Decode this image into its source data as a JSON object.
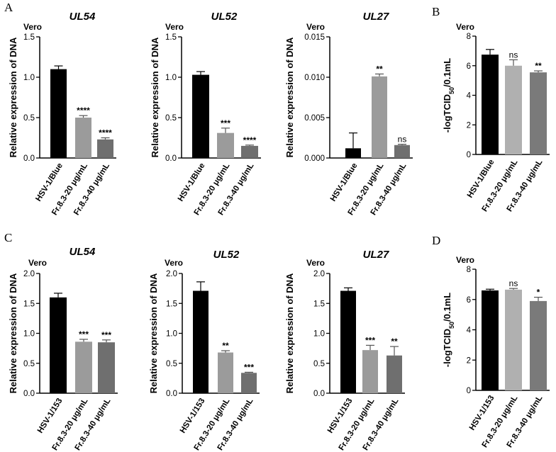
{
  "panel_letters": {
    "A": "A",
    "B": "B",
    "C": "C",
    "D": "D"
  },
  "chart_data": [
    {
      "id": "A-UL54",
      "panel": "A",
      "type": "bar",
      "title": "UL54",
      "cell_label": "Vero",
      "ylabel": "Relative expression of DNA",
      "xlabel": "",
      "categories": [
        "HSV-1/Blue",
        "Fr.8.3-20 μg/mL",
        "Fr.8.3-40 μg/mL"
      ],
      "values": [
        1.1,
        0.5,
        0.23
      ],
      "errors": [
        0.04,
        0.025,
        0.02
      ],
      "significance": [
        "",
        "****",
        "****"
      ],
      "ylim": [
        0,
        1.5
      ],
      "yticks": [
        0.0,
        0.5,
        1.0,
        1.5
      ],
      "tick_decimals": 1,
      "colors": [
        "#000000",
        "#9b9b9b",
        "#6f6f6f"
      ]
    },
    {
      "id": "A-UL52",
      "panel": "A",
      "type": "bar",
      "title": "UL52",
      "cell_label": "Vero",
      "ylabel": "Relative expression of DNA",
      "xlabel": "",
      "categories": [
        "HSV-1/Blue",
        "Fr.8.3-20 μg/mL",
        "Fr.8.3-40 μg/mL"
      ],
      "values": [
        1.03,
        0.31,
        0.15
      ],
      "errors": [
        0.04,
        0.06,
        0.01
      ],
      "significance": [
        "",
        "***",
        "****"
      ],
      "ylim": [
        0,
        1.5
      ],
      "yticks": [
        0.0,
        0.5,
        1.0,
        1.5
      ],
      "tick_decimals": 1,
      "colors": [
        "#000000",
        "#9b9b9b",
        "#6f6f6f"
      ]
    },
    {
      "id": "A-UL27",
      "panel": "A",
      "type": "bar",
      "title": "UL27",
      "cell_label": "Vero",
      "ylabel": "Relative expression of DNA",
      "xlabel": "",
      "categories": [
        "HSV-1/Blue",
        "Fr.8.3-20 μg/mL",
        "Fr.8.3-40 μg/mL"
      ],
      "values": [
        0.0012,
        0.0101,
        0.0016
      ],
      "errors": [
        0.0019,
        0.0003,
        0.0001
      ],
      "significance": [
        "",
        "**",
        "ns"
      ],
      "ylim": [
        0,
        0.015
      ],
      "yticks": [
        0.0,
        0.005,
        0.01,
        0.015
      ],
      "tick_decimals": 3,
      "colors": [
        "#000000",
        "#9b9b9b",
        "#6f6f6f"
      ]
    },
    {
      "id": "B",
      "panel": "B",
      "type": "bar",
      "title": "",
      "cell_label": "Vero",
      "ylabel": "-logTCID50/0.1mL",
      "ylabel_main": "-logTCID",
      "ylabel_sub": "50",
      "ylabel_tail": "/0.1mL",
      "xlabel": "",
      "categories": [
        "HSV-1/Blue",
        "Fr.8.3-20 μg/mL",
        "Fr.8.3-40 μg/mL"
      ],
      "values": [
        6.75,
        6.0,
        5.55
      ],
      "errors": [
        0.35,
        0.4,
        0.1
      ],
      "significance": [
        "",
        "ns",
        "**"
      ],
      "ylim": [
        0,
        8
      ],
      "yticks": [
        0,
        2,
        4,
        6,
        8
      ],
      "tick_decimals": 0,
      "colors": [
        "#000000",
        "#b0b0b0",
        "#7a7a7a"
      ]
    },
    {
      "id": "C-UL54",
      "panel": "C",
      "type": "bar",
      "title": "UL54",
      "cell_label": "Vero",
      "ylabel": "Relative expression of DNA",
      "xlabel": "",
      "categories": [
        "HSV-1/153",
        "Fr.8.3-20 μg/mL",
        "Fr.8.3-40 μg/mL"
      ],
      "values": [
        1.6,
        0.86,
        0.85
      ],
      "errors": [
        0.07,
        0.04,
        0.04
      ],
      "significance": [
        "",
        "***",
        "***"
      ],
      "ylim": [
        0,
        2.0
      ],
      "yticks": [
        0.0,
        0.5,
        1.0,
        1.5,
        2.0
      ],
      "tick_decimals": 1,
      "colors": [
        "#000000",
        "#9b9b9b",
        "#6f6f6f"
      ]
    },
    {
      "id": "C-UL52",
      "panel": "C",
      "type": "bar",
      "title": "UL52",
      "cell_label": "Vero",
      "ylabel": "Relative expression of DNA",
      "xlabel": "",
      "categories": [
        "HSV-1/153",
        "Fr.8.3-20 μg/mL",
        "Fr.8.3-40 μg/mL"
      ],
      "values": [
        1.71,
        0.68,
        0.34
      ],
      "errors": [
        0.15,
        0.03,
        0.01
      ],
      "significance": [
        "",
        "**",
        "***"
      ],
      "ylim": [
        0,
        2.0
      ],
      "yticks": [
        0.0,
        0.5,
        1.0,
        1.5,
        2.0
      ],
      "tick_decimals": 1,
      "colors": [
        "#000000",
        "#9b9b9b",
        "#6f6f6f"
      ]
    },
    {
      "id": "C-UL27",
      "panel": "C",
      "type": "bar",
      "title": "UL27",
      "cell_label": "Vero",
      "ylabel": "Relative expression of DNA",
      "xlabel": "",
      "categories": [
        "HSV-1/153",
        "Fr.8.3-20 μg/mL",
        "Fr.8.3-40 μg/mL"
      ],
      "values": [
        1.71,
        0.72,
        0.63
      ],
      "errors": [
        0.05,
        0.08,
        0.15
      ],
      "significance": [
        "",
        "***",
        "**"
      ],
      "ylim": [
        0,
        2.0
      ],
      "yticks": [
        0.0,
        0.5,
        1.0,
        1.5,
        2.0
      ],
      "tick_decimals": 1,
      "colors": [
        "#000000",
        "#9b9b9b",
        "#6f6f6f"
      ]
    },
    {
      "id": "D",
      "panel": "D",
      "type": "bar",
      "title": "",
      "cell_label": "Vero",
      "ylabel": "-logTCID50/0.1mL",
      "ylabel_main": "-logTCID",
      "ylabel_sub": "50",
      "ylabel_tail": "/0.1mL",
      "xlabel": "",
      "categories": [
        "HSV-1/153",
        "Fr.8.3-20 μg/mL",
        "Fr.8.3-40 μg/mL"
      ],
      "values": [
        6.6,
        6.65,
        5.9
      ],
      "errors": [
        0.08,
        0.08,
        0.25
      ],
      "significance": [
        "",
        "ns",
        "*"
      ],
      "ylim": [
        0,
        8
      ],
      "yticks": [
        0,
        2,
        4,
        6,
        8
      ],
      "tick_decimals": 0,
      "colors": [
        "#000000",
        "#b0b0b0",
        "#7a7a7a"
      ]
    }
  ]
}
